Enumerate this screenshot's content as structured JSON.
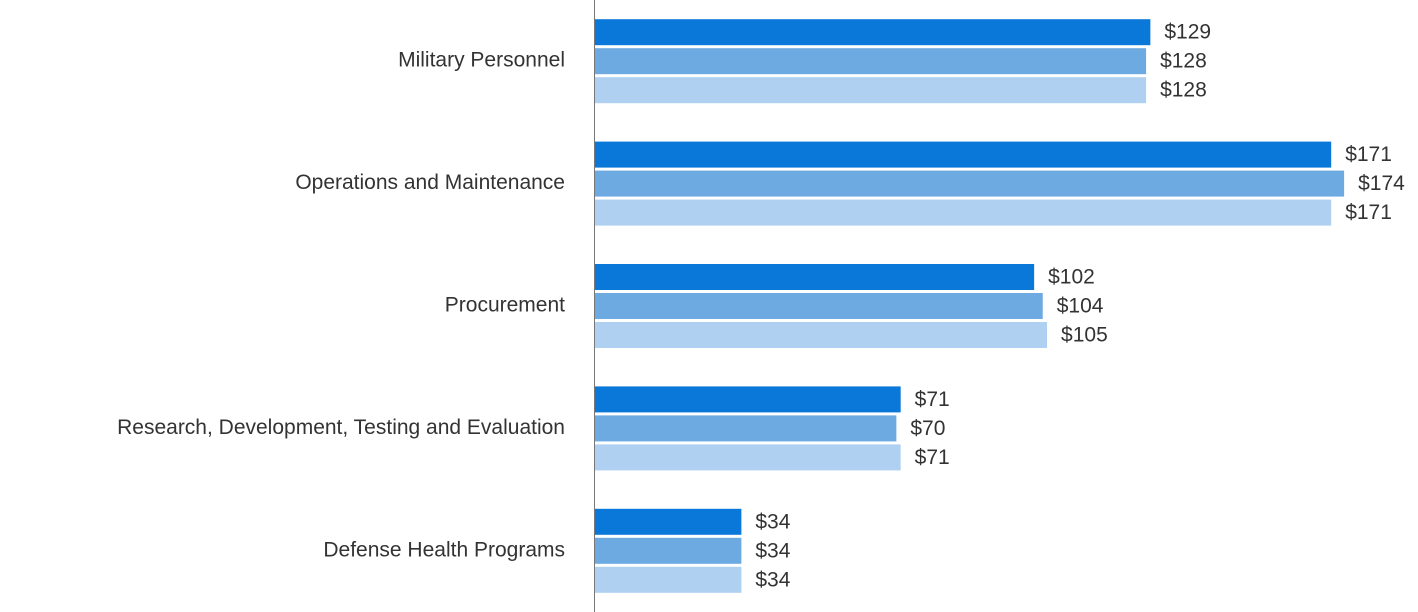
{
  "chart_data": {
    "type": "hbar",
    "categories": [
      "Military Personnel",
      "Operations and Maintenance",
      "Procurement",
      "Research, Development, Testing and Evaluation",
      "Defense Health Programs"
    ],
    "series": [
      {
        "color": "#0a78d8",
        "values": [
          129,
          171,
          102,
          71,
          34
        ],
        "value_labels": [
          "$129",
          "$171",
          "$102",
          "$71",
          "$34"
        ]
      },
      {
        "color": "#6eaae2",
        "values": [
          128,
          174,
          104,
          70,
          34
        ],
        "value_labels": [
          "$128",
          "$174",
          "$104",
          "$70",
          "$34"
        ]
      },
      {
        "color": "#afd0f0",
        "values": [
          128,
          171,
          105,
          71,
          34
        ],
        "value_labels": [
          "$128",
          "$171",
          "$105",
          "$71",
          "$34"
        ]
      }
    ],
    "xlim": [
      0,
      190
    ]
  }
}
